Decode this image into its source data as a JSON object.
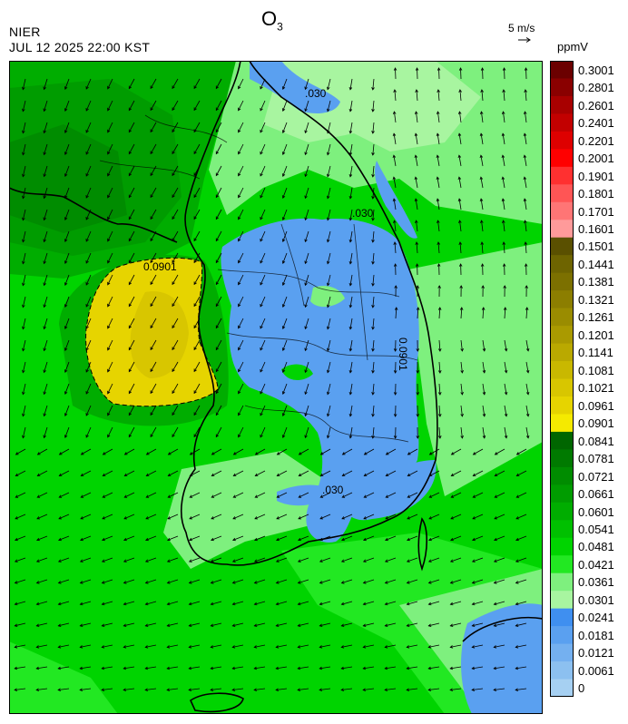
{
  "title": {
    "main": "O",
    "sub": "3"
  },
  "header": {
    "agency": "NIER",
    "datetime": "JUL 12 2025 22:00 KST"
  },
  "wind_reference": {
    "label": "5 m/s"
  },
  "colorbar": {
    "unit": "ppmV",
    "levels": [
      {
        "label": "0.3001",
        "color": "#6b0000"
      },
      {
        "label": "0.2801",
        "color": "#8a0000"
      },
      {
        "label": "0.2601",
        "color": "#a80000"
      },
      {
        "label": "0.2401",
        "color": "#c20000"
      },
      {
        "label": "0.2201",
        "color": "#de0000"
      },
      {
        "label": "0.2001",
        "color": "#ff0000"
      },
      {
        "label": "0.1901",
        "color": "#ff3030"
      },
      {
        "label": "0.1801",
        "color": "#ff5555"
      },
      {
        "label": "0.1701",
        "color": "#ff7575"
      },
      {
        "label": "0.1601",
        "color": "#ff9a9a"
      },
      {
        "label": "0.1501",
        "color": "#5a5000"
      },
      {
        "label": "0.1441",
        "color": "#6e6400"
      },
      {
        "label": "0.1381",
        "color": "#7c7000"
      },
      {
        "label": "0.1321",
        "color": "#8c7e00"
      },
      {
        "label": "0.1261",
        "color": "#9a8c00"
      },
      {
        "label": "0.1201",
        "color": "#aa9a00"
      },
      {
        "label": "0.1141",
        "color": "#baa900"
      },
      {
        "label": "0.1081",
        "color": "#c9b800"
      },
      {
        "label": "0.1021",
        "color": "#d8c600"
      },
      {
        "label": "0.0961",
        "color": "#e6d400"
      },
      {
        "label": "0.0901",
        "color": "#f5ea00"
      },
      {
        "label": "0.0841",
        "color": "#006600"
      },
      {
        "label": "0.0781",
        "color": "#007a00"
      },
      {
        "label": "0.0721",
        "color": "#008c00"
      },
      {
        "label": "0.0661",
        "color": "#009c00"
      },
      {
        "label": "0.0601",
        "color": "#00ad00"
      },
      {
        "label": "0.0541",
        "color": "#00c000"
      },
      {
        "label": "0.0481",
        "color": "#00d400"
      },
      {
        "label": "0.0421",
        "color": "#22e822"
      },
      {
        "label": "0.0361",
        "color": "#7ef07e"
      },
      {
        "label": "0.0301",
        "color": "#a8f5a0"
      },
      {
        "label": "0.0241",
        "color": "#3f8ff0"
      },
      {
        "label": "0.0181",
        "color": "#5aa0f0"
      },
      {
        "label": "0.0121",
        "color": "#74b0f0"
      },
      {
        "label": "0.0061",
        "color": "#8cc0f0"
      },
      {
        "label": "0",
        "color": "#a6d0f2"
      }
    ]
  },
  "map": {
    "contour_labels": [
      {
        "text": "0.0901",
        "name": "contour-label-west"
      },
      {
        "text": ".030",
        "name": "contour-label-northeast"
      },
      {
        "text": ".030",
        "name": "contour-label-east"
      },
      {
        "text": ".030",
        "name": "contour-label-south"
      },
      {
        "text": "0.0901",
        "name": "contour-label-central"
      }
    ]
  }
}
